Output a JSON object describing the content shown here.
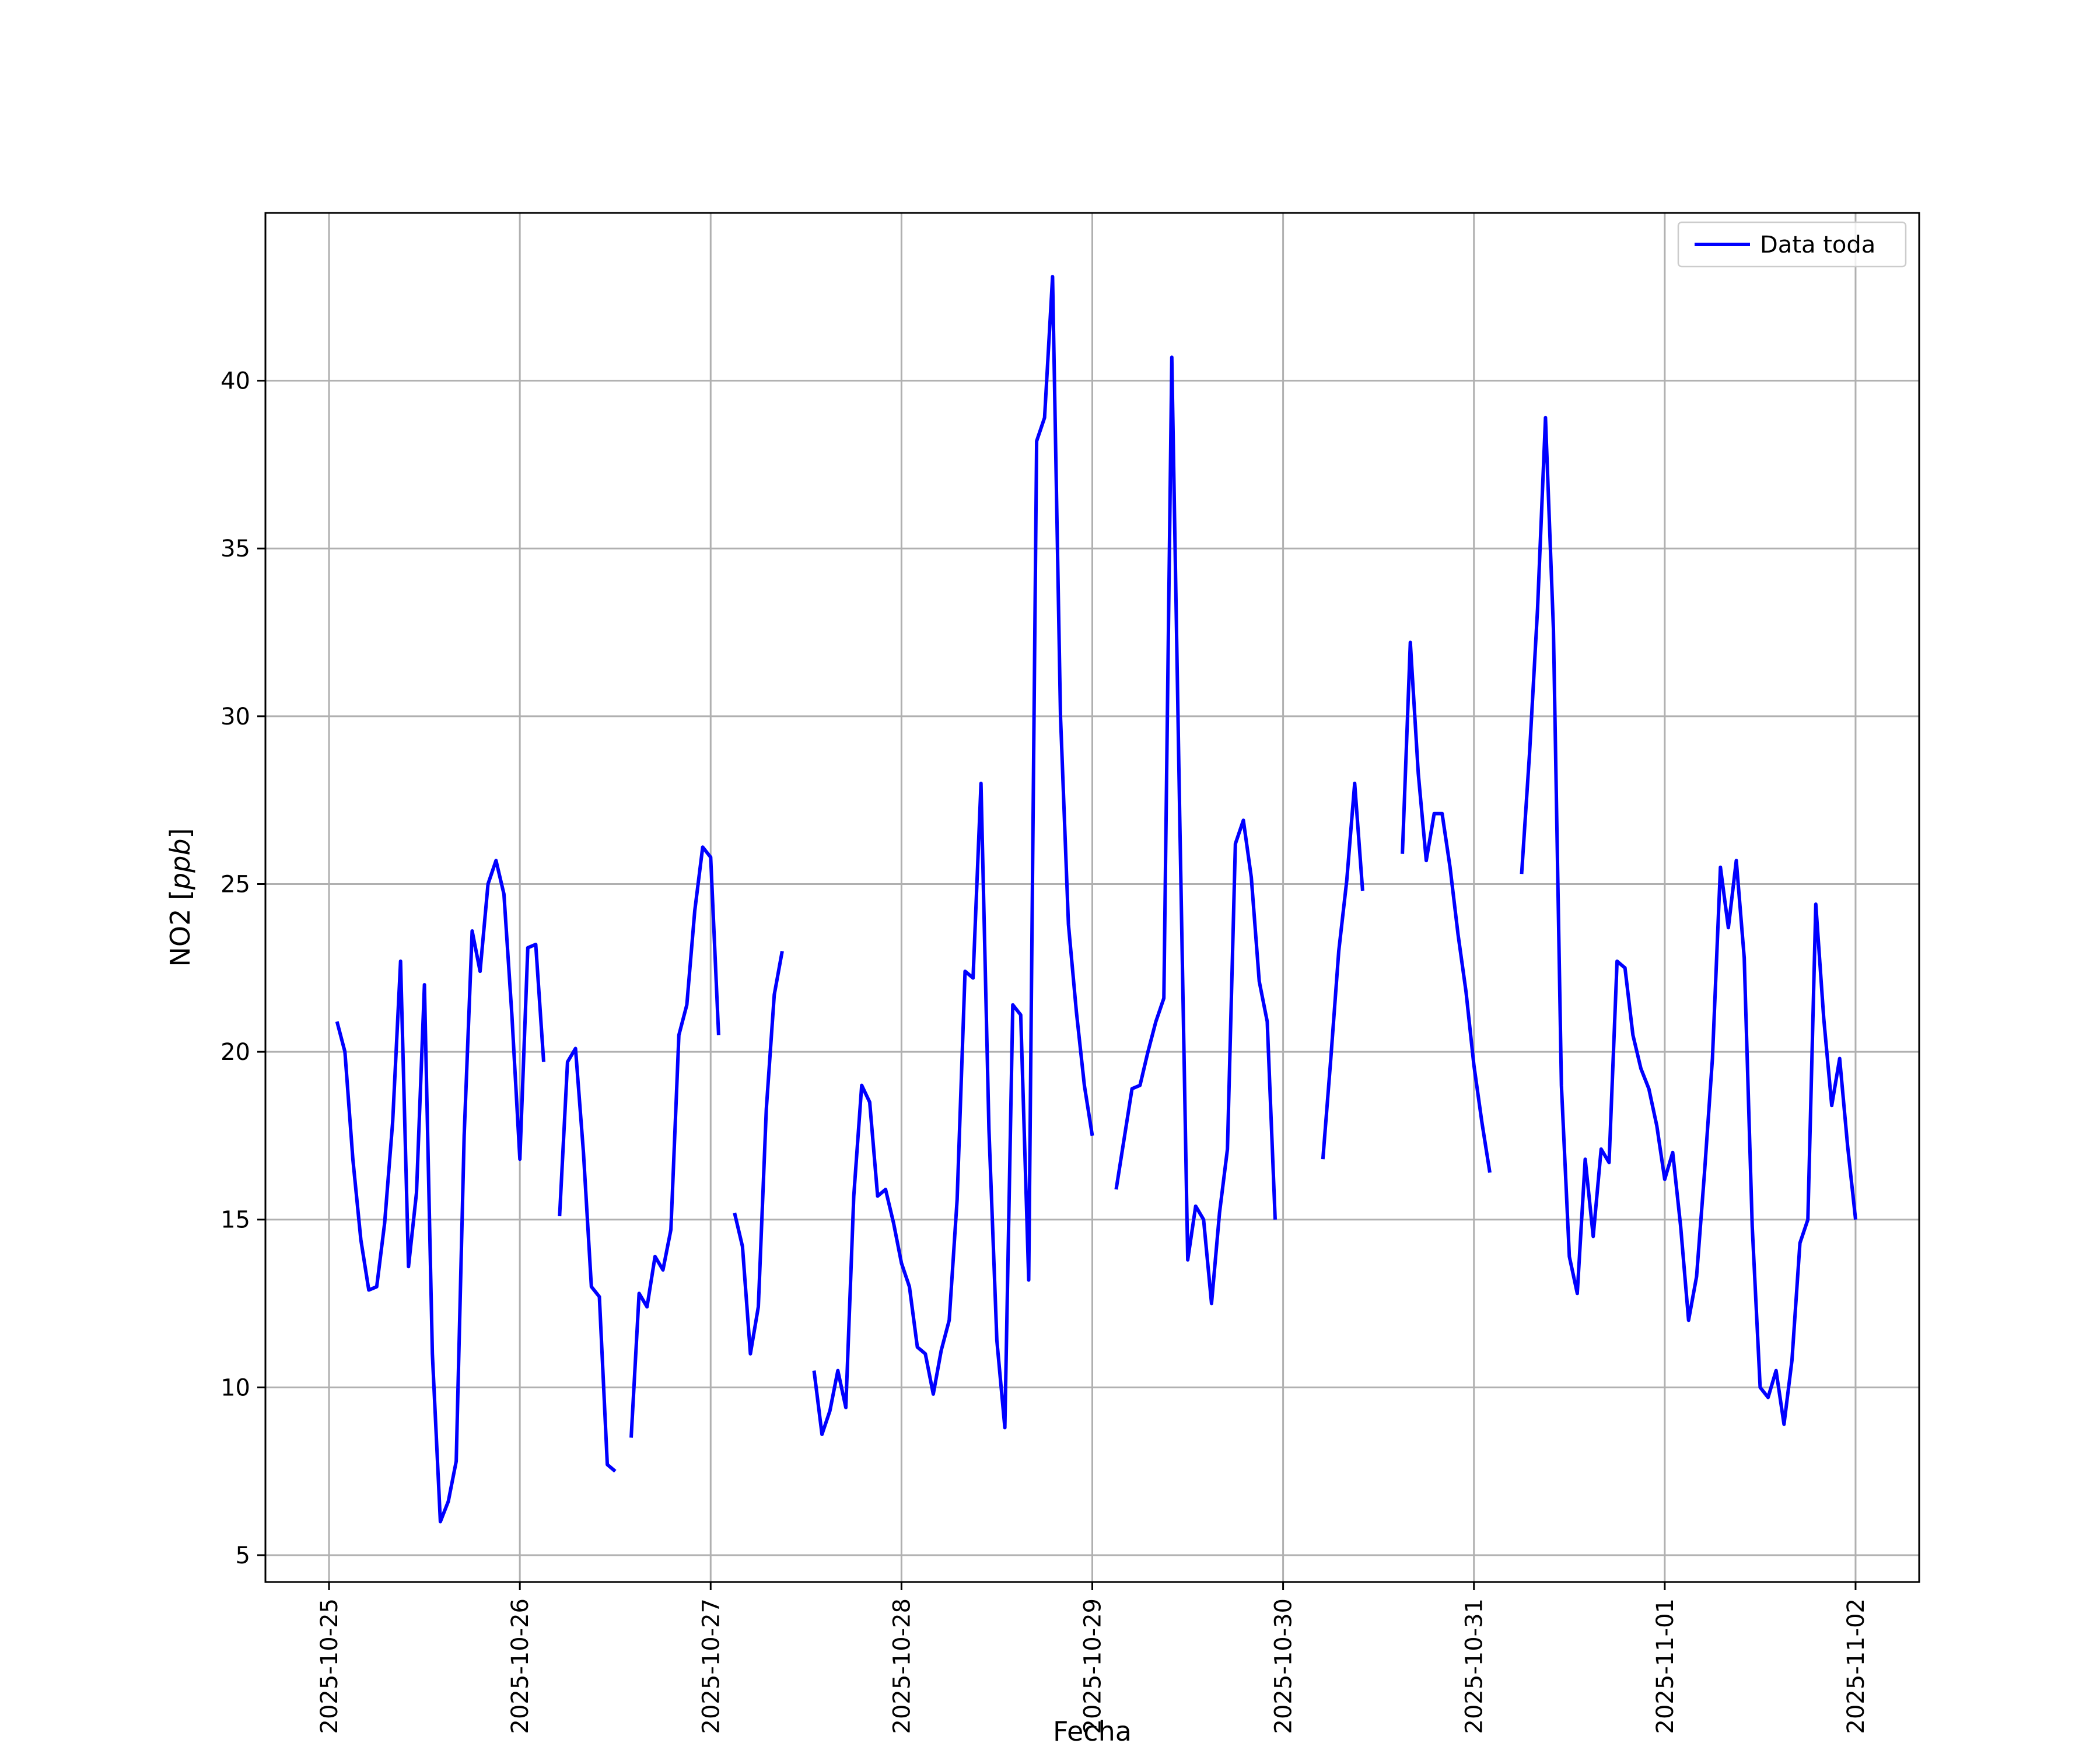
{
  "chart_data": {
    "type": "line",
    "title": "",
    "xlabel": "Fecha",
    "ylabel_prefix": "NO2 [",
    "ylabel_unit": "ppb",
    "ylabel_suffix": "]",
    "ylim": [
      4.2,
      45.0
    ],
    "xlim": [
      "2025-10-24 16:00",
      "2025-11-02 08:00"
    ],
    "grid": true,
    "legend_position": "top-right",
    "x_ticks": [
      "2025-10-25",
      "2025-10-26",
      "2025-10-27",
      "2025-10-28",
      "2025-10-29",
      "2025-10-30",
      "2025-10-31",
      "2025-11-01",
      "2025-11-02"
    ],
    "y_ticks": [
      5,
      10,
      15,
      20,
      25,
      30,
      35,
      40
    ],
    "series": [
      {
        "name": "Data toda",
        "color": "#0000ff",
        "segments": [
          [
            [
              "2025-10-25 01:00",
              20.9
            ],
            [
              "2025-10-25 02:00",
              20.0
            ],
            [
              "2025-10-25 03:00",
              16.8
            ],
            [
              "2025-10-25 04:00",
              14.4
            ],
            [
              "2025-10-25 05:00",
              12.9
            ],
            [
              "2025-10-25 06:00",
              13.0
            ],
            [
              "2025-10-25 07:00",
              14.9
            ],
            [
              "2025-10-25 08:00",
              17.9
            ],
            [
              "2025-10-25 09:00",
              22.7
            ],
            [
              "2025-10-25 10:00",
              13.6
            ],
            [
              "2025-10-25 11:00",
              15.8
            ],
            [
              "2025-10-25 12:00",
              22.0
            ],
            [
              "2025-10-25 13:00",
              11.0
            ],
            [
              "2025-10-25 14:00",
              6.0
            ],
            [
              "2025-10-25 15:00",
              6.6
            ],
            [
              "2025-10-25 16:00",
              7.8
            ],
            [
              "2025-10-25 17:00",
              17.5
            ],
            [
              "2025-10-25 18:00",
              23.6
            ],
            [
              "2025-10-25 19:00",
              22.4
            ],
            [
              "2025-10-25 20:00",
              25.0
            ],
            [
              "2025-10-25 21:00",
              25.7
            ],
            [
              "2025-10-25 22:00",
              24.7
            ],
            [
              "2025-10-25 23:00",
              21.1
            ],
            [
              "2025-10-26 00:00",
              16.8
            ],
            [
              "2025-10-26 01:00",
              23.1
            ],
            [
              "2025-10-26 02:00",
              23.2
            ],
            [
              "2025-10-26 03:00",
              19.7
            ]
          ],
          [
            [
              "2025-10-26 05:00",
              15.1
            ],
            [
              "2025-10-26 06:00",
              19.7
            ],
            [
              "2025-10-26 07:00",
              20.1
            ],
            [
              "2025-10-26 08:00",
              17.0
            ],
            [
              "2025-10-26 09:00",
              13.0
            ],
            [
              "2025-10-26 10:00",
              12.7
            ],
            [
              "2025-10-26 11:00",
              7.7
            ],
            [
              "2025-10-26 12:00",
              7.5
            ]
          ],
          [
            [
              "2025-10-26 14:00",
              8.5
            ],
            [
              "2025-10-26 15:00",
              12.8
            ],
            [
              "2025-10-26 16:00",
              12.4
            ],
            [
              "2025-10-26 17:00",
              13.9
            ],
            [
              "2025-10-26 18:00",
              13.5
            ],
            [
              "2025-10-26 19:00",
              14.7
            ],
            [
              "2025-10-26 20:00",
              20.5
            ],
            [
              "2025-10-26 21:00",
              21.4
            ],
            [
              "2025-10-26 22:00",
              24.2
            ],
            [
              "2025-10-26 23:00",
              26.1
            ],
            [
              "2025-10-27 00:00",
              25.8
            ],
            [
              "2025-10-27 01:00",
              20.5
            ]
          ],
          [
            [
              "2025-10-27 03:00",
              15.2
            ],
            [
              "2025-10-27 04:00",
              14.2
            ],
            [
              "2025-10-27 05:00",
              11.0
            ],
            [
              "2025-10-27 06:00",
              12.4
            ],
            [
              "2025-10-27 07:00",
              18.3
            ],
            [
              "2025-10-27 08:00",
              21.7
            ],
            [
              "2025-10-27 09:00",
              23.0
            ]
          ],
          [
            [
              "2025-10-27 13:00",
              10.5
            ],
            [
              "2025-10-27 14:00",
              8.6
            ],
            [
              "2025-10-27 15:00",
              9.3
            ],
            [
              "2025-10-27 16:00",
              10.5
            ],
            [
              "2025-10-27 17:00",
              9.4
            ],
            [
              "2025-10-27 18:00",
              15.7
            ],
            [
              "2025-10-27 19:00",
              19.0
            ],
            [
              "2025-10-27 20:00",
              18.5
            ],
            [
              "2025-10-27 21:00",
              15.7
            ],
            [
              "2025-10-27 22:00",
              15.9
            ],
            [
              "2025-10-27 23:00",
              14.9
            ],
            [
              "2025-10-28 00:00",
              13.7
            ],
            [
              "2025-10-28 01:00",
              13.0
            ],
            [
              "2025-10-28 02:00",
              11.2
            ],
            [
              "2025-10-28 03:00",
              11.0
            ],
            [
              "2025-10-28 04:00",
              9.8
            ],
            [
              "2025-10-28 05:00",
              11.1
            ],
            [
              "2025-10-28 06:00",
              12.0
            ],
            [
              "2025-10-28 07:00",
              15.6
            ],
            [
              "2025-10-28 08:00",
              22.4
            ],
            [
              "2025-10-28 09:00",
              22.2
            ],
            [
              "2025-10-28 10:00",
              28.0
            ],
            [
              "2025-10-28 11:00",
              17.7
            ],
            [
              "2025-10-28 12:00",
              11.4
            ],
            [
              "2025-10-28 13:00",
              8.8
            ],
            [
              "2025-10-28 14:00",
              21.4
            ],
            [
              "2025-10-28 15:00",
              21.1
            ],
            [
              "2025-10-28 16:00",
              13.2
            ],
            [
              "2025-10-28 17:00",
              38.2
            ],
            [
              "2025-10-28 18:00",
              38.9
            ],
            [
              "2025-10-28 19:00",
              43.1
            ],
            [
              "2025-10-28 20:00",
              30.0
            ],
            [
              "2025-10-28 21:00",
              23.8
            ],
            [
              "2025-10-28 22:00",
              21.2
            ],
            [
              "2025-10-28 23:00",
              19.0
            ],
            [
              "2025-10-29 00:00",
              17.5
            ]
          ],
          [
            [
              "2025-10-29 03:00",
              15.9
            ],
            [
              "2025-10-29 04:00",
              17.4
            ],
            [
              "2025-10-29 05:00",
              18.9
            ],
            [
              "2025-10-29 06:00",
              19.0
            ],
            [
              "2025-10-29 07:00",
              20.0
            ],
            [
              "2025-10-29 08:00",
              20.9
            ],
            [
              "2025-10-29 09:00",
              21.6
            ],
            [
              "2025-10-29 10:00",
              40.7
            ],
            [
              "2025-10-29 11:00",
              27.0
            ],
            [
              "2025-10-29 12:00",
              13.8
            ],
            [
              "2025-10-29 13:00",
              15.4
            ],
            [
              "2025-10-29 14:00",
              15.0
            ],
            [
              "2025-10-29 15:00",
              12.5
            ],
            [
              "2025-10-29 16:00",
              15.2
            ],
            [
              "2025-10-29 17:00",
              17.1
            ],
            [
              "2025-10-29 18:00",
              26.2
            ],
            [
              "2025-10-29 19:00",
              26.9
            ],
            [
              "2025-10-29 20:00",
              25.2
            ],
            [
              "2025-10-29 21:00",
              22.1
            ],
            [
              "2025-10-29 22:00",
              20.9
            ],
            [
              "2025-10-29 23:00",
              15.0
            ]
          ],
          [
            [
              "2025-10-30 05:00",
              16.8
            ],
            [
              "2025-10-30 06:00",
              19.8
            ],
            [
              "2025-10-30 07:00",
              23.0
            ],
            [
              "2025-10-30 08:00",
              25.1
            ],
            [
              "2025-10-30 09:00",
              28.0
            ],
            [
              "2025-10-30 10:00",
              24.8
            ]
          ],
          [
            [
              "2025-10-30 15:00",
              25.9
            ],
            [
              "2025-10-30 16:00",
              32.2
            ],
            [
              "2025-10-30 17:00",
              28.3
            ],
            [
              "2025-10-30 18:00",
              25.7
            ],
            [
              "2025-10-30 19:00",
              27.1
            ],
            [
              "2025-10-30 20:00",
              27.1
            ],
            [
              "2025-10-30 21:00",
              25.5
            ],
            [
              "2025-10-30 22:00",
              23.5
            ],
            [
              "2025-10-30 23:00",
              21.8
            ],
            [
              "2025-10-31 00:00",
              19.6
            ],
            [
              "2025-10-31 01:00",
              17.9
            ],
            [
              "2025-10-31 02:00",
              16.4
            ]
          ],
          [
            [
              "2025-10-31 06:00",
              25.3
            ],
            [
              "2025-10-31 07:00",
              28.9
            ],
            [
              "2025-10-31 08:00",
              33.2
            ],
            [
              "2025-10-31 09:00",
              38.9
            ],
            [
              "2025-10-31 10:00",
              32.6
            ],
            [
              "2025-10-31 11:00",
              19.0
            ],
            [
              "2025-10-31 12:00",
              13.9
            ],
            [
              "2025-10-31 13:00",
              12.8
            ],
            [
              "2025-10-31 14:00",
              16.8
            ],
            [
              "2025-10-31 15:00",
              14.5
            ],
            [
              "2025-10-31 16:00",
              17.1
            ],
            [
              "2025-10-31 17:00",
              16.7
            ],
            [
              "2025-10-31 18:00",
              22.7
            ],
            [
              "2025-10-31 19:00",
              22.5
            ],
            [
              "2025-10-31 20:00",
              20.5
            ],
            [
              "2025-10-31 21:00",
              19.5
            ],
            [
              "2025-10-31 22:00",
              18.9
            ],
            [
              "2025-10-31 23:00",
              17.8
            ],
            [
              "2025-11-01 00:00",
              16.2
            ],
            [
              "2025-11-01 01:00",
              17.0
            ],
            [
              "2025-11-01 02:00",
              14.8
            ],
            [
              "2025-11-01 03:00",
              12.0
            ],
            [
              "2025-11-01 04:00",
              13.3
            ],
            [
              "2025-11-01 05:00",
              16.4
            ],
            [
              "2025-11-01 06:00",
              19.8
            ],
            [
              "2025-11-01 07:00",
              25.5
            ],
            [
              "2025-11-01 08:00",
              23.7
            ],
            [
              "2025-11-01 09:00",
              25.7
            ],
            [
              "2025-11-01 10:00",
              22.8
            ],
            [
              "2025-11-01 11:00",
              14.8
            ],
            [
              "2025-11-01 12:00",
              10.0
            ],
            [
              "2025-11-01 13:00",
              9.7
            ],
            [
              "2025-11-01 14:00",
              10.5
            ],
            [
              "2025-11-01 15:00",
              8.9
            ],
            [
              "2025-11-01 16:00",
              10.8
            ],
            [
              "2025-11-01 17:00",
              14.3
            ],
            [
              "2025-11-01 18:00",
              15.0
            ],
            [
              "2025-11-01 19:00",
              24.4
            ],
            [
              "2025-11-01 20:00",
              21.0
            ],
            [
              "2025-11-01 21:00",
              18.4
            ],
            [
              "2025-11-01 22:00",
              19.8
            ],
            [
              "2025-11-01 23:00",
              17.2
            ],
            [
              "2025-11-02 00:00",
              15.0
            ]
          ]
        ]
      }
    ]
  }
}
